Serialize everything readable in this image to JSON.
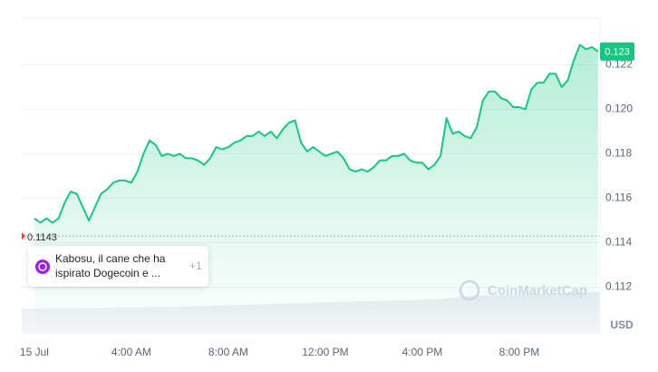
{
  "chart_data": {
    "type": "line",
    "color": "#16c784",
    "x": [
      0,
      0.25,
      0.5,
      0.75,
      1,
      1.25,
      1.5,
      1.75,
      2,
      2.25,
      2.5,
      2.75,
      3,
      3.25,
      3.5,
      3.75,
      4,
      4.25,
      4.5,
      4.75,
      5,
      5.25,
      5.5,
      5.75,
      6,
      6.25,
      6.5,
      6.75,
      7,
      7.25,
      7.5,
      7.75,
      8,
      8.25,
      8.5,
      8.75,
      9,
      9.25,
      9.5,
      9.75,
      10,
      10.25,
      10.5,
      10.75,
      11,
      11.25,
      11.5,
      11.75,
      12,
      12.25,
      12.5,
      12.75,
      13,
      13.25,
      13.5,
      13.75,
      14,
      14.25,
      14.5,
      14.75,
      15,
      15.25,
      15.5,
      15.75,
      16,
      16.25,
      16.5,
      16.75,
      17,
      17.25,
      17.5,
      17.75,
      18,
      18.25,
      18.5,
      18.75,
      19,
      19.25,
      19.5,
      19.75,
      20,
      20.25,
      20.5,
      20.75,
      21,
      21.25,
      21.5,
      21.75,
      22,
      22.25,
      22.5,
      22.75,
      23,
      23.25
    ],
    "values": [
      0.1151,
      0.1149,
      0.1151,
      0.1149,
      0.1151,
      0.1158,
      0.1163,
      0.1162,
      0.1156,
      0.115,
      0.1156,
      0.1162,
      0.1164,
      0.1167,
      0.1168,
      0.1168,
      0.1167,
      0.1172,
      0.118,
      0.1186,
      0.1184,
      0.1179,
      0.118,
      0.1179,
      0.118,
      0.1178,
      0.1178,
      0.1177,
      0.1175,
      0.1178,
      0.1183,
      0.1182,
      0.1183,
      0.1185,
      0.1186,
      0.1188,
      0.1188,
      0.119,
      0.1188,
      0.119,
      0.1187,
      0.1191,
      0.1194,
      0.1195,
      0.1185,
      0.1181,
      0.1183,
      0.1181,
      0.1179,
      0.118,
      0.1181,
      0.1178,
      0.1173,
      0.1172,
      0.1173,
      0.1172,
      0.1174,
      0.1177,
      0.1177,
      0.1179,
      0.1179,
      0.118,
      0.1177,
      0.1176,
      0.1176,
      0.1173,
      0.1175,
      0.1179,
      0.1196,
      0.1189,
      0.119,
      0.1188,
      0.1187,
      0.1192,
      0.1204,
      0.1208,
      0.1208,
      0.1205,
      0.1204,
      0.1201,
      0.1201,
      0.12,
      0.1209,
      0.1212,
      0.1212,
      0.1216,
      0.1216,
      0.121,
      0.1213,
      0.1222,
      0.1229,
      0.1227,
      0.1228,
      0.1226
    ],
    "xlim": [
      -0.52,
      23.33
    ],
    "ylim": [
      0.1099,
      0.1241
    ],
    "xticks": [
      {
        "value": 0,
        "label": "15 Jul"
      },
      {
        "value": 4,
        "label": "4:00 AM"
      },
      {
        "value": 8,
        "label": "8:00 AM"
      },
      {
        "value": 12,
        "label": "12:00 PM"
      },
      {
        "value": 16,
        "label": "4:00 PM"
      },
      {
        "value": 20,
        "label": "8:00 PM"
      }
    ],
    "yticks": [
      0.112,
      0.114,
      0.116,
      0.118,
      {
        "value": 0.12,
        "label": "0.120"
      },
      0.122
    ],
    "grid": true,
    "reference_value": 0.1143,
    "last_price_label": "0.123",
    "currency": "USD",
    "watermark": "CoinMarketCap",
    "annotation": {
      "lines": [
        "Kabosu, il cane che ha",
        "ispirato Dogecoin e ..."
      ],
      "count": "+1"
    }
  }
}
